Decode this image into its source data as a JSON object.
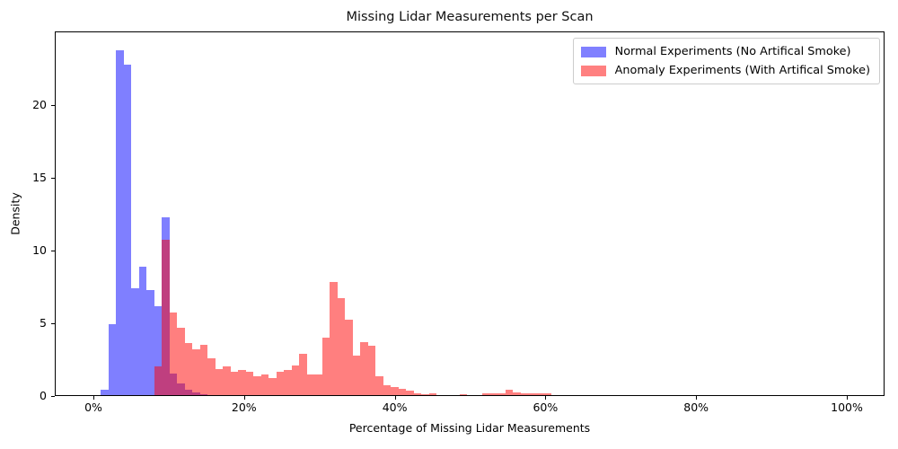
{
  "title": "Missing Lidar Measurements per Scan",
  "axes": {
    "xlabel": "Percentage of Missing Lidar Measurements",
    "ylabel": "Density",
    "x_tick_labels": [
      "0%",
      "20%",
      "40%",
      "60%",
      "80%",
      "100%"
    ],
    "x_tick_values": [
      0,
      20,
      40,
      60,
      80,
      100
    ],
    "y_tick_labels": [
      "0",
      "5",
      "10",
      "15",
      "20"
    ],
    "y_tick_values": [
      0,
      5,
      10,
      15,
      20
    ],
    "xlim_pct": [
      -5.1,
      105.0
    ],
    "ylim": [
      0,
      25.06
    ],
    "grid": false
  },
  "legend": {
    "position": "upper right",
    "items": [
      {
        "label": "Normal Experiments (No Artifical Smoke)",
        "swatch_color": "#8080FF"
      },
      {
        "label": "Anomaly Experiments (With Artifical Smoke)",
        "swatch_color": "#FF8080"
      }
    ]
  },
  "chart_data": {
    "type": "bar",
    "subtype": "overlapping-density-histograms",
    "title": "Missing Lidar Measurements per Scan",
    "xlabel": "Percentage of Missing Lidar Measurements",
    "ylabel": "Density",
    "x_units": "percent",
    "bin_width_pct": 1.01,
    "series": [
      {
        "name": "Normal Experiments (No Artifical Smoke)",
        "color": "rgba(0,0,255,0.5)",
        "bars": [
          [
            1.0,
            0.37
          ],
          [
            2.01,
            4.9
          ],
          [
            3.03,
            23.68
          ],
          [
            4.04,
            22.73
          ],
          [
            5.05,
            7.36
          ],
          [
            6.06,
            8.8
          ],
          [
            7.08,
            7.2
          ],
          [
            8.09,
            6.09
          ],
          [
            9.1,
            12.2
          ],
          [
            10.12,
            1.5
          ],
          [
            11.13,
            0.82
          ],
          [
            12.14,
            0.37
          ],
          [
            13.15,
            0.17
          ],
          [
            14.17,
            0.08
          ]
        ]
      },
      {
        "name": "Anomaly Experiments (With Artifical Smoke)",
        "color": "rgba(255,0,0,0.5)",
        "bars": [
          [
            8.07,
            1.97
          ],
          [
            9.08,
            10.66
          ],
          [
            10.1,
            5.7
          ],
          [
            11.11,
            4.6
          ],
          [
            12.12,
            3.6
          ],
          [
            13.14,
            3.15
          ],
          [
            14.15,
            3.46
          ],
          [
            15.16,
            2.53
          ],
          [
            16.18,
            1.81
          ],
          [
            17.19,
            1.96
          ],
          [
            18.2,
            1.6
          ],
          [
            19.22,
            1.75
          ],
          [
            20.23,
            1.6
          ],
          [
            21.24,
            1.3
          ],
          [
            22.26,
            1.4
          ],
          [
            23.27,
            1.19
          ],
          [
            24.28,
            1.6
          ],
          [
            25.3,
            1.71
          ],
          [
            26.31,
            2.02
          ],
          [
            27.32,
            2.84
          ],
          [
            28.34,
            1.4
          ],
          [
            29.35,
            1.4
          ],
          [
            30.36,
            3.97
          ],
          [
            31.38,
            7.78
          ],
          [
            32.39,
            6.65
          ],
          [
            33.4,
            5.2
          ],
          [
            34.42,
            2.73
          ],
          [
            35.43,
            3.66
          ],
          [
            36.44,
            3.4
          ],
          [
            37.46,
            1.3
          ],
          [
            38.47,
            0.68
          ],
          [
            39.48,
            0.57
          ],
          [
            40.5,
            0.43
          ],
          [
            41.51,
            0.31
          ],
          [
            42.52,
            0.12
          ],
          [
            43.54,
            0.06
          ],
          [
            44.55,
            0.1
          ],
          [
            48.6,
            0.08
          ],
          [
            51.64,
            0.12
          ],
          [
            52.66,
            0.15
          ],
          [
            53.67,
            0.1
          ],
          [
            54.68,
            0.4
          ],
          [
            55.7,
            0.2
          ],
          [
            56.71,
            0.15
          ],
          [
            57.72,
            0.12
          ],
          [
            58.74,
            0.12
          ],
          [
            59.75,
            0.1
          ]
        ]
      }
    ]
  }
}
